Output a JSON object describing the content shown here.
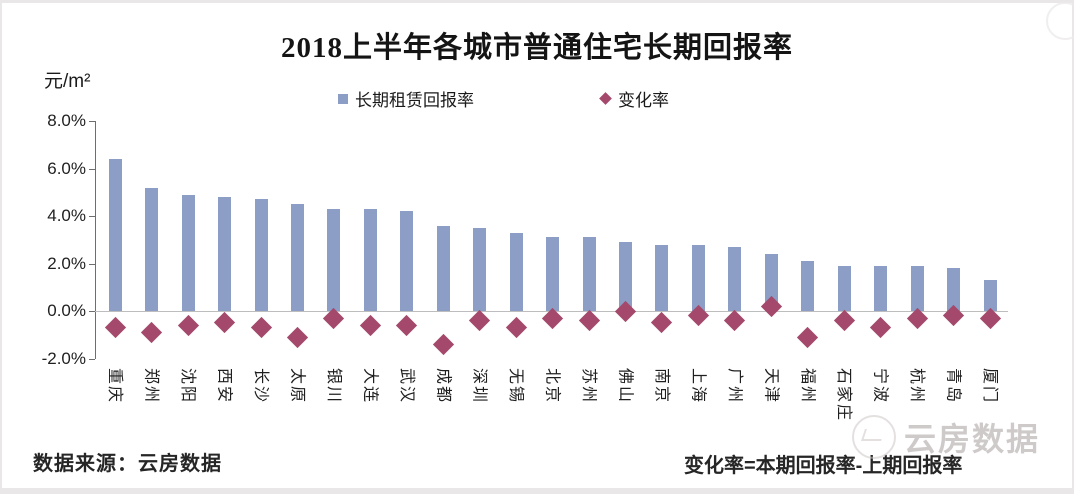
{
  "watermark": {
    "brand": "云房数据"
  },
  "footer": {
    "source": "数据来源：云房数据",
    "formula": "变化率=本期回报率-上期回报率"
  },
  "chart_data": {
    "type": "bar",
    "title": "2018上半年各城市普通住宅长期回报率",
    "unit_label": "元/m²",
    "categories": [
      "重庆",
      "郑州",
      "沈阳",
      "西安",
      "长沙",
      "太原",
      "银川",
      "大连",
      "武汉",
      "成都",
      "深圳",
      "无锡",
      "北京",
      "苏州",
      "佛山",
      "南京",
      "上海",
      "广州",
      "天津",
      "福州",
      "石家庄",
      "宁波",
      "杭州",
      "青岛",
      "厦门"
    ],
    "series": [
      {
        "name": "长期租赁回报率",
        "type": "bar",
        "color": "#8C9EC5",
        "values": [
          6.4,
          5.2,
          4.9,
          4.8,
          4.7,
          4.5,
          4.3,
          4.3,
          4.2,
          3.6,
          3.5,
          3.3,
          3.1,
          3.1,
          2.9,
          2.8,
          2.8,
          2.7,
          2.4,
          2.1,
          1.9,
          1.9,
          1.9,
          1.8,
          1.3
        ]
      },
      {
        "name": "变化率",
        "type": "diamond",
        "color": "#A4496C",
        "values": [
          -0.7,
          -0.9,
          -0.6,
          -0.5,
          -0.7,
          -1.1,
          -0.3,
          -0.6,
          -0.6,
          -1.4,
          -0.4,
          -0.7,
          -0.3,
          -0.4,
          0.0,
          -0.5,
          -0.2,
          -0.4,
          0.2,
          -1.1,
          -0.4,
          -0.7,
          -0.3,
          -0.2,
          -0.3
        ]
      }
    ],
    "ylim": [
      -2,
      8
    ],
    "ytick_labels": [
      "8.0%",
      "6.0%",
      "4.0%",
      "2.0%",
      "0.0%",
      "-2.0%"
    ],
    "ytick_values": [
      8,
      6,
      4,
      2,
      0,
      -2
    ],
    "grid": "zero-line-only",
    "legend_position": "top-center",
    "xlabel_rotation": "vertical"
  }
}
